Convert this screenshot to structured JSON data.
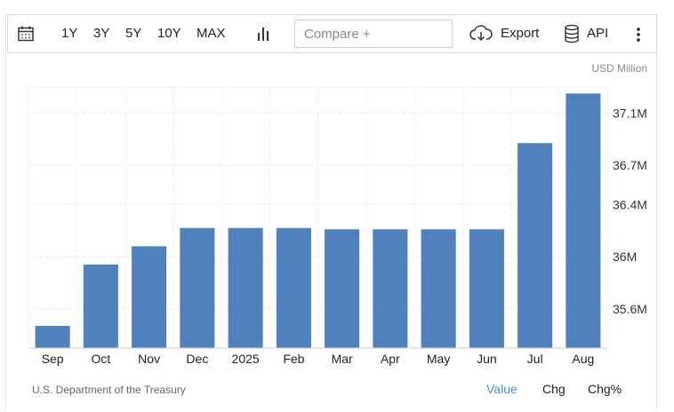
{
  "toolbar": {
    "calendar_icon": "calendar-icon",
    "ranges": [
      "1Y",
      "3Y",
      "5Y",
      "10Y",
      "MAX"
    ],
    "chart_type_icon": "bar-chart-icon",
    "compare_placeholder": "Compare +",
    "export_label": "Export",
    "export_icon": "cloud-download-icon",
    "api_label": "API",
    "api_icon": "database-icon",
    "more_icon": "more-vertical-icon"
  },
  "unit_label": "USD Million",
  "source": "U.S. Department of the Treasury",
  "modes": [
    "Value",
    "Chg",
    "Chg%"
  ],
  "active_mode": "Value",
  "colors": {
    "bar": "#4f81bd",
    "active": "#4a90d9",
    "grid": "#e9e9e9"
  },
  "chart_data": {
    "type": "bar",
    "categories": [
      "Sep",
      "Oct",
      "Nov",
      "Dec",
      "2025",
      "Feb",
      "Mar",
      "Apr",
      "May",
      "Jun",
      "Jul",
      "Aug"
    ],
    "values": [
      35.47,
      35.94,
      36.08,
      36.22,
      36.22,
      36.22,
      36.21,
      36.21,
      36.21,
      36.21,
      36.87,
      37.25
    ],
    "yticks": [
      35.6,
      36,
      36.4,
      36.7,
      37.1
    ],
    "ytick_labels": [
      "35.6M",
      "36M",
      "36.4M",
      "36.7M",
      "37.1M"
    ],
    "ylim": [
      35.3,
      37.3
    ],
    "title": "",
    "xlabel": "",
    "ylabel": "USD Million",
    "grid": true
  }
}
